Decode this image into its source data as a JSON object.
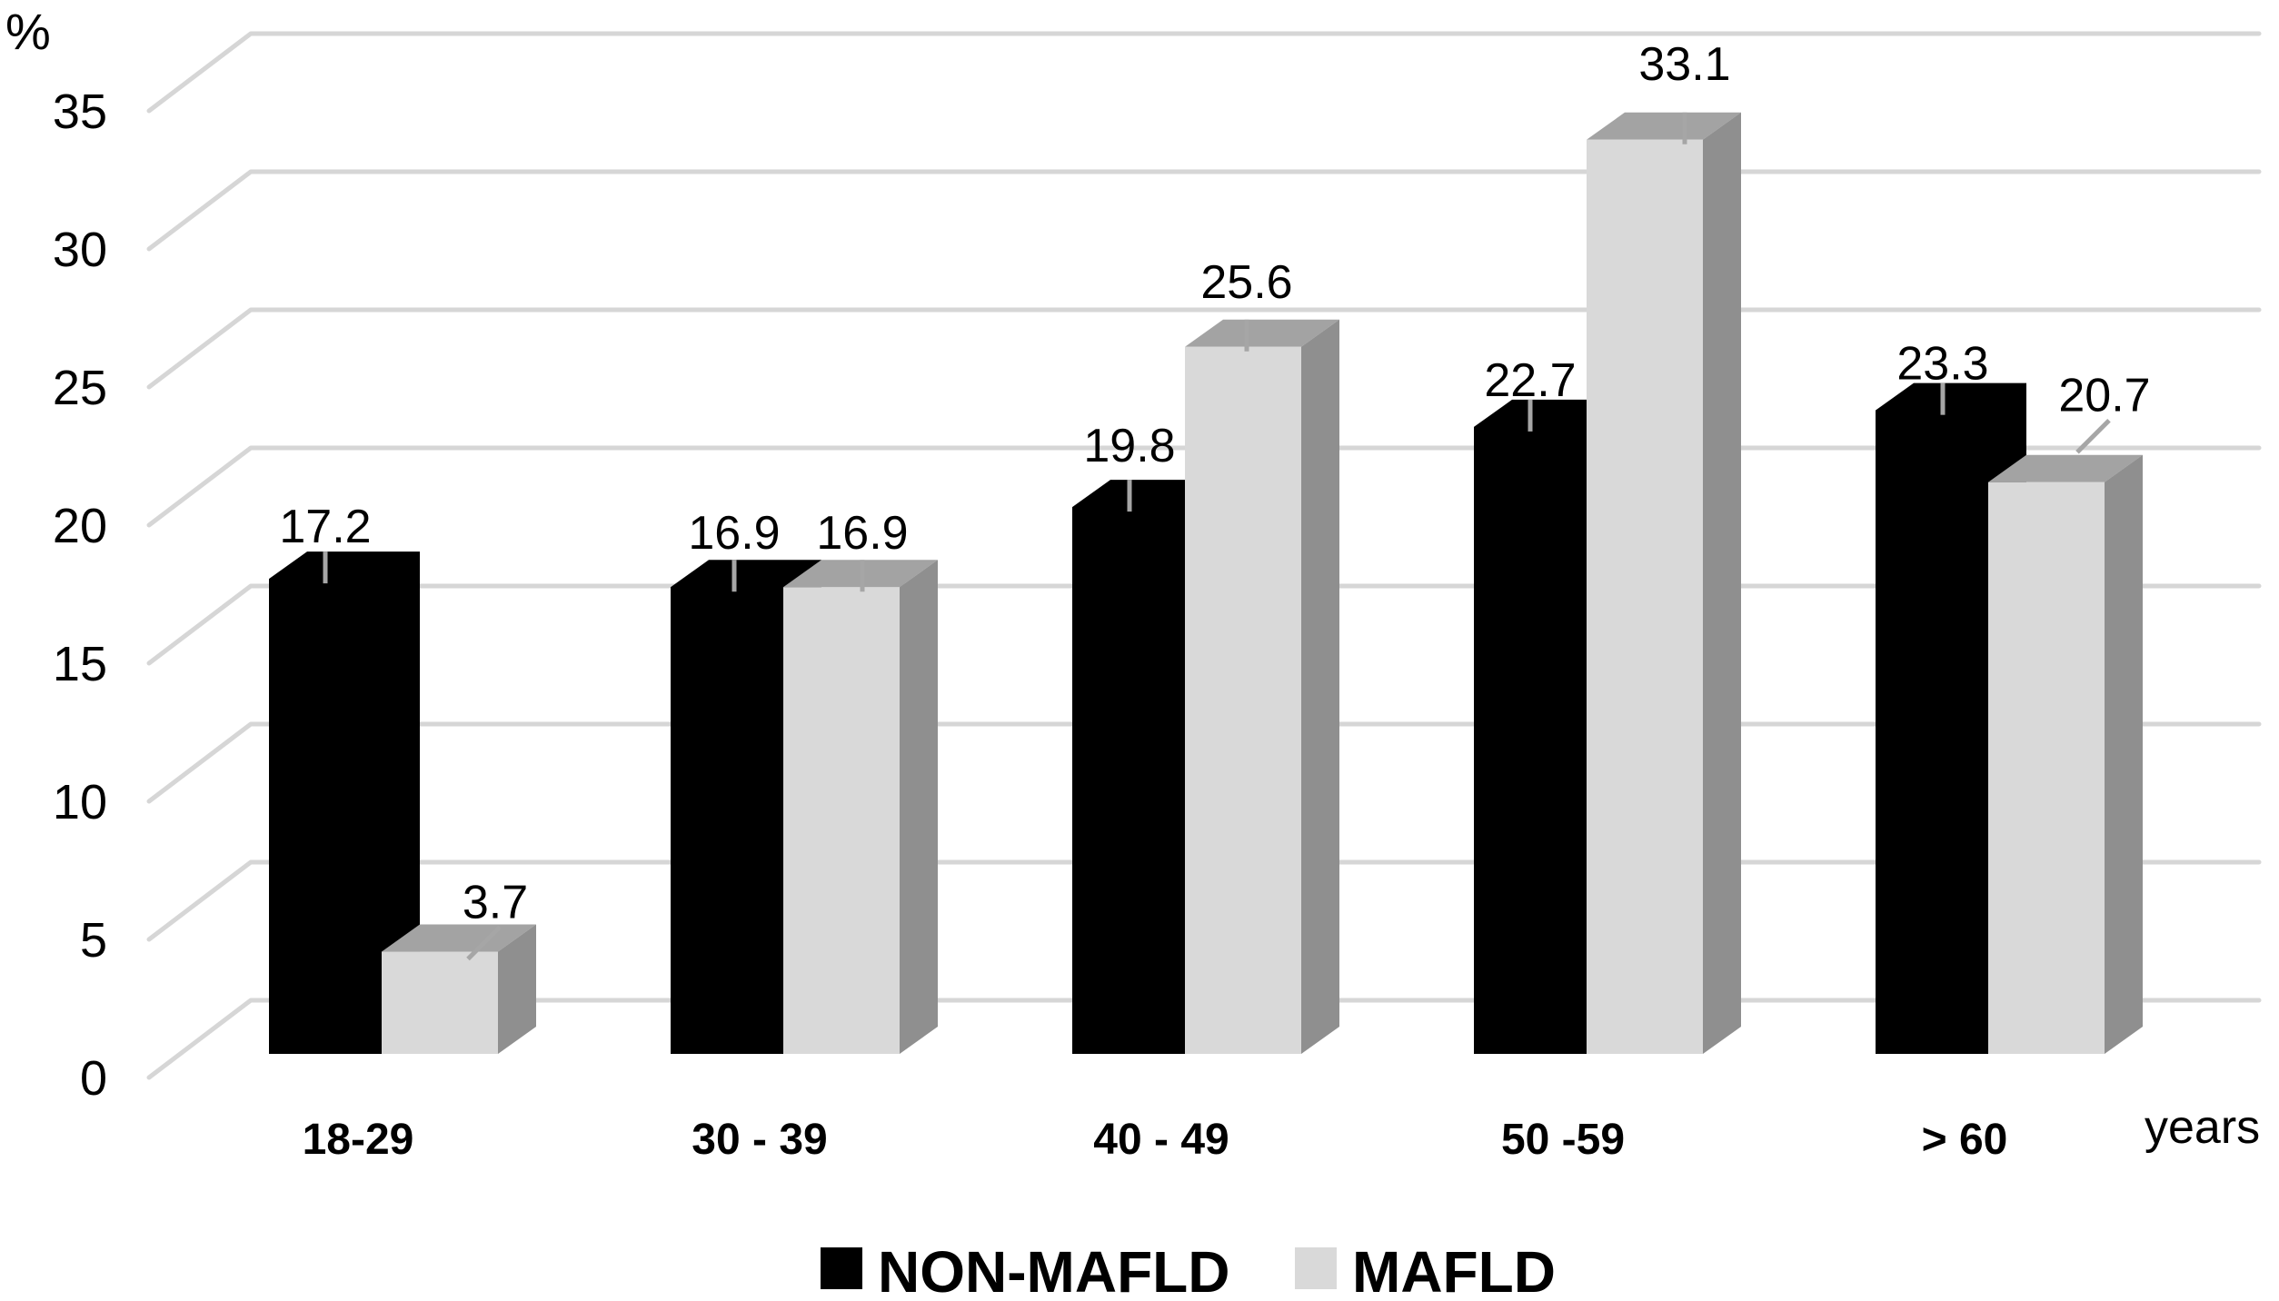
{
  "chart_data": {
    "type": "bar",
    "style": "3d-column",
    "title": "",
    "categories": [
      "18-29",
      "30 - 39",
      "40 - 49",
      "50 -59",
      "> 60"
    ],
    "series": [
      {
        "name": "NON-MAFLD",
        "color": "#000000",
        "values": [
          17.2,
          16.9,
          19.8,
          22.7,
          23.3
        ]
      },
      {
        "name": "MAFLD",
        "color": "#d9d9d9",
        "values": [
          3.7,
          16.9,
          25.6,
          33.1,
          20.7
        ]
      }
    ],
    "ylabel": "%",
    "xlabel": "years",
    "ylim": [
      0,
      35
    ],
    "yticks": [
      0,
      5,
      10,
      15,
      20,
      25,
      30,
      35
    ],
    "grid": true,
    "legend_position": "bottom",
    "data_labels": true
  },
  "legend": {
    "items": [
      {
        "label": "NON-MAFLD",
        "color": "#000000"
      },
      {
        "label": "MAFLD",
        "color": "#d9d9d9"
      }
    ]
  },
  "colors": {
    "background": "#ffffff",
    "gridline": "#d6d6d6",
    "leader_tick": "#a6a6a6",
    "label_text": "#000000",
    "mafld_bar_front": "#d9d9d9",
    "mafld_bar_top": "#a3a3a3",
    "mafld_bar_side": "#8f8f8f",
    "non_mafld_bar": "#000000"
  }
}
